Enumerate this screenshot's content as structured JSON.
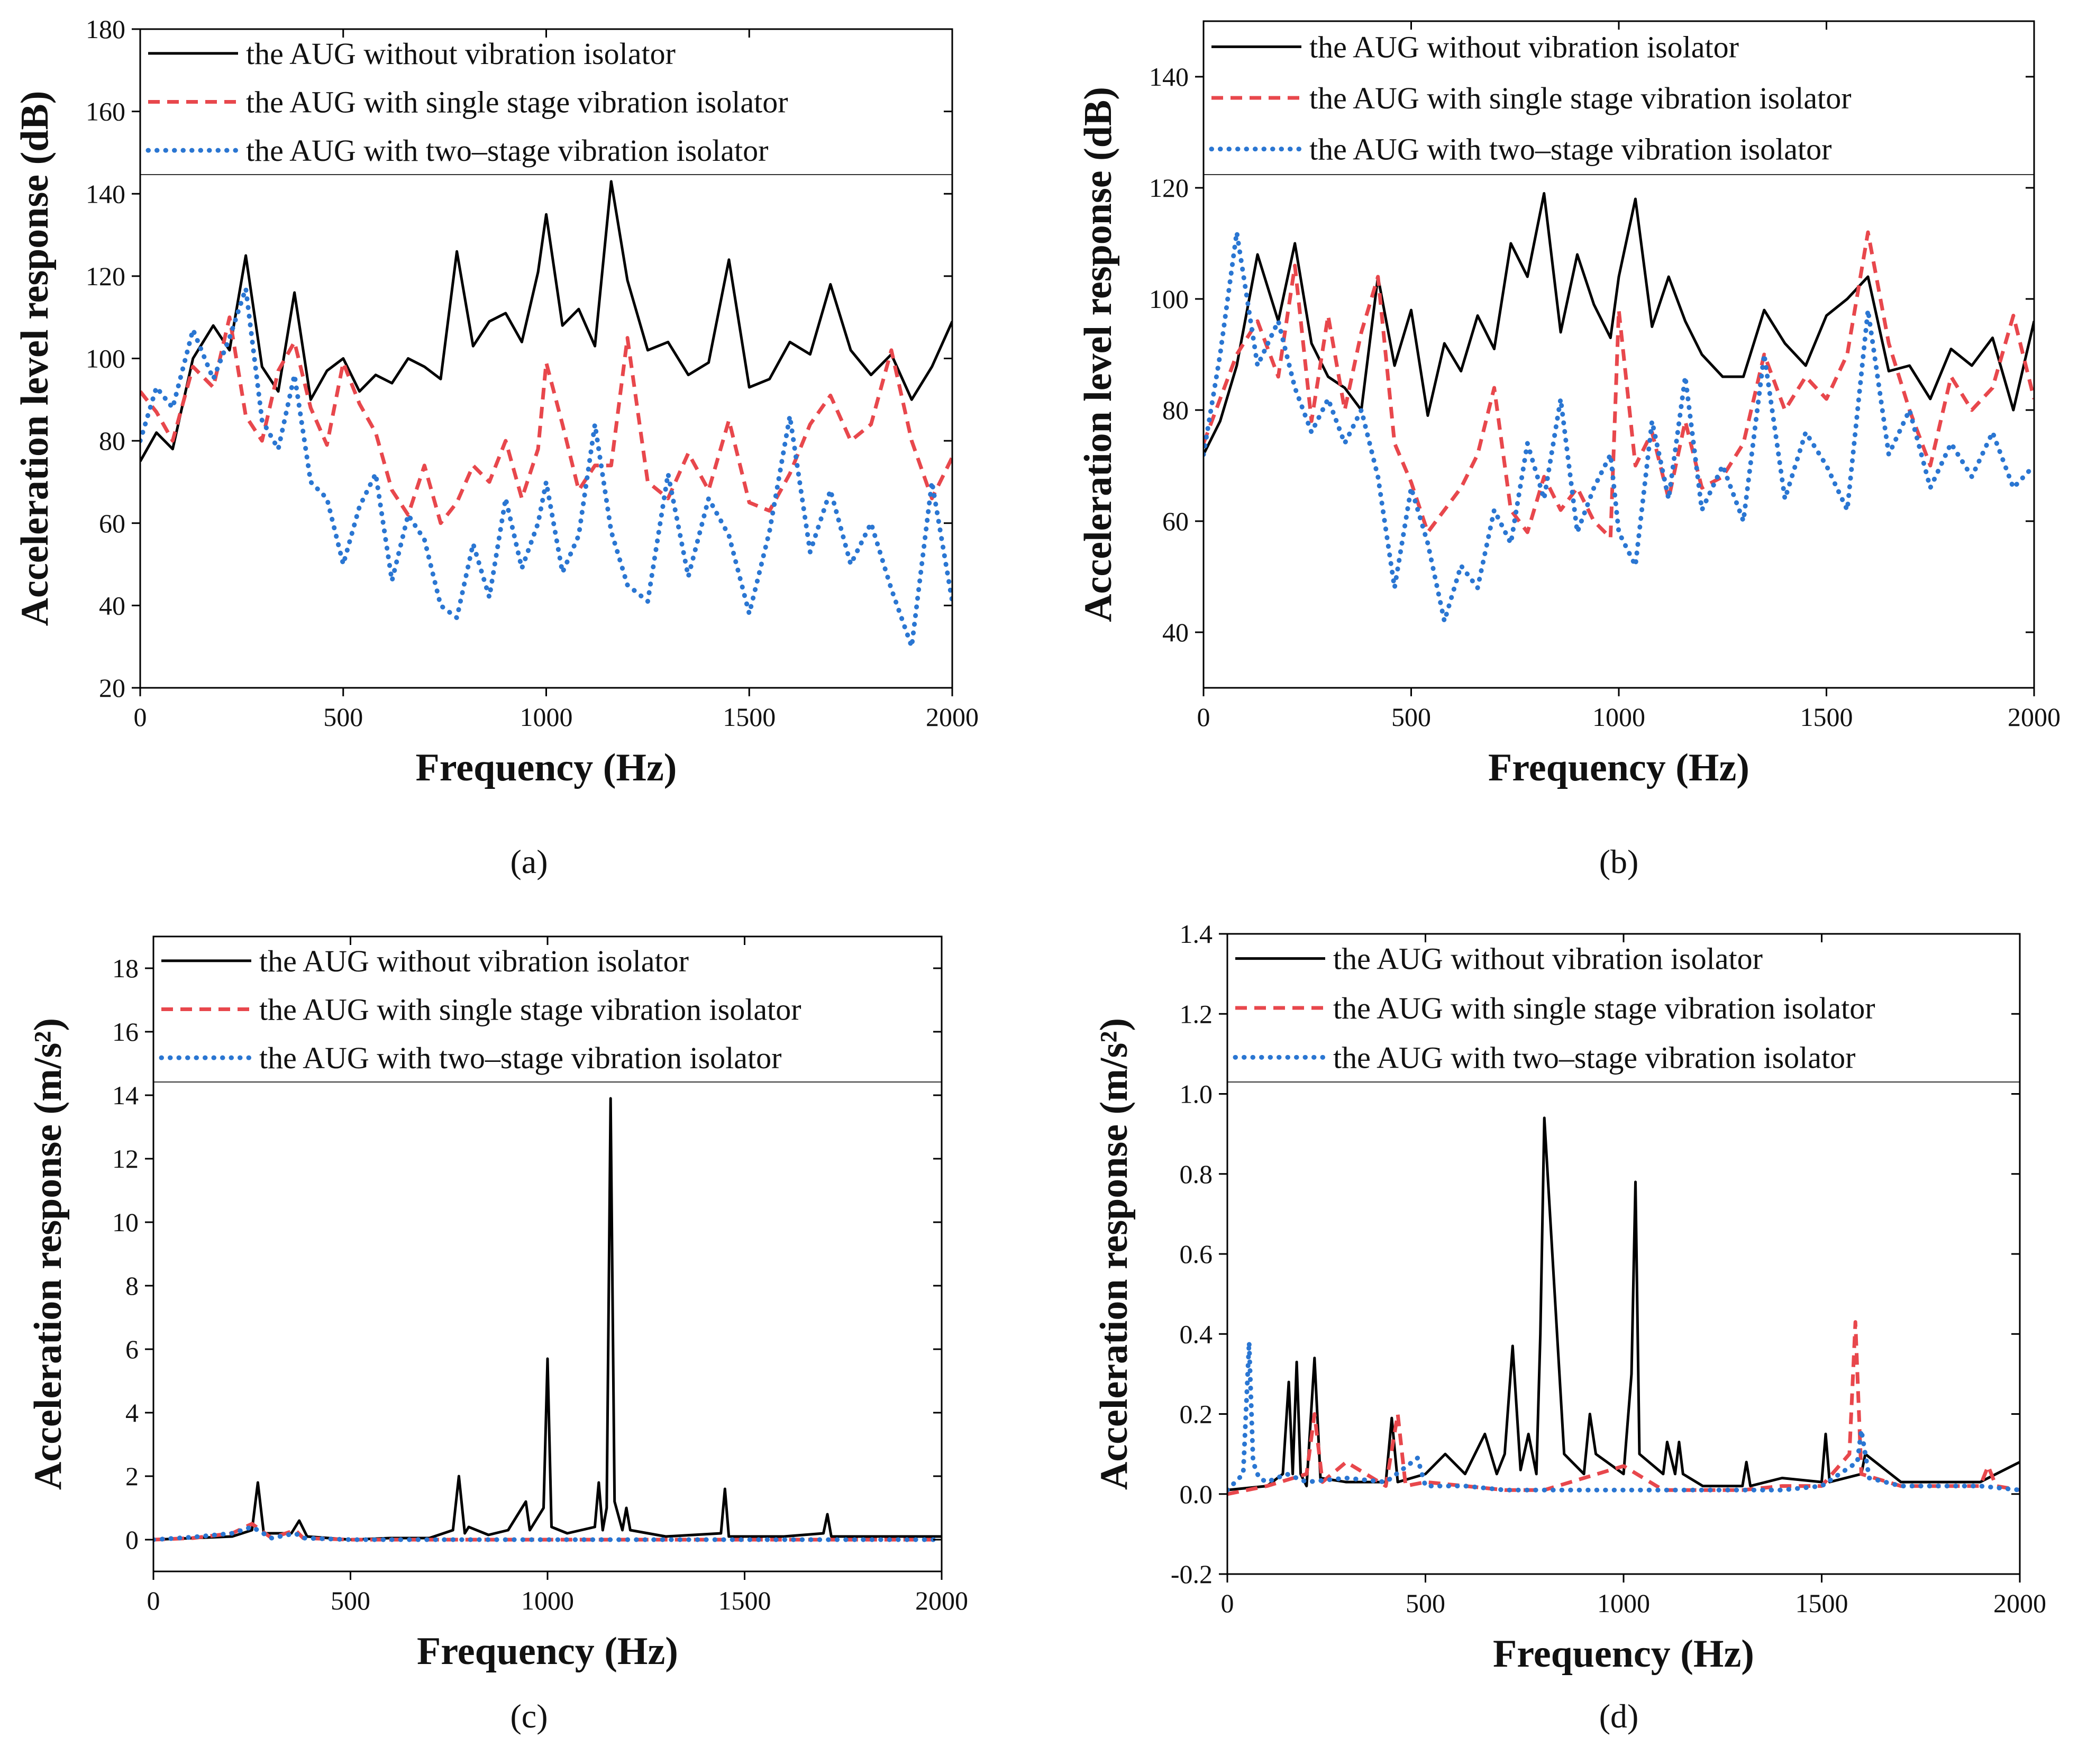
{
  "figure_type": "four-panel frequency response comparison",
  "legend_entries": [
    {
      "label": "the AUG without vibration isolator",
      "color": "#000000",
      "style": "solid"
    },
    {
      "label": "the AUG with single stage vibration isolator",
      "color": "#e8474c",
      "style": "dashed"
    },
    {
      "label": "the AUG with two–stage vibration isolator",
      "color": "#2a76d2",
      "style": "dotted"
    }
  ],
  "panel_labels": [
    "(a)",
    "(b)",
    "(c)",
    "(d)"
  ],
  "chart_data": [
    {
      "type": "line",
      "panel": "(a)",
      "xlabel": "Frequency (Hz)",
      "ylabel": "Acceleration level response (dB)",
      "xlim": [
        0,
        2000
      ],
      "ylim": [
        20,
        180
      ],
      "xticks": [
        0,
        500,
        1000,
        1500,
        2000
      ],
      "yticks": [
        20,
        40,
        60,
        80,
        100,
        120,
        140,
        160,
        180
      ],
      "tick_decimals": 0,
      "legend_position": "top",
      "series": [
        {
          "name": "the AUG without vibration isolator",
          "x": [
            0,
            40,
            80,
            130,
            180,
            220,
            260,
            300,
            340,
            380,
            420,
            460,
            500,
            540,
            580,
            620,
            660,
            700,
            740,
            780,
            820,
            860,
            900,
            940,
            980,
            1000,
            1040,
            1080,
            1120,
            1160,
            1200,
            1250,
            1300,
            1350,
            1400,
            1450,
            1500,
            1550,
            1600,
            1650,
            1700,
            1750,
            1800,
            1850,
            1900,
            1950,
            2000
          ],
          "y": [
            75,
            82,
            78,
            100,
            108,
            102,
            125,
            98,
            92,
            116,
            90,
            97,
            100,
            92,
            96,
            94,
            100,
            98,
            95,
            126,
            103,
            109,
            111,
            104,
            121,
            135,
            108,
            112,
            103,
            143,
            119,
            102,
            104,
            96,
            99,
            124,
            93,
            95,
            104,
            101,
            118,
            102,
            96,
            101,
            90,
            98,
            109
          ]
        },
        {
          "name": "the AUG with single stage vibration isolator",
          "x": [
            0,
            40,
            80,
            130,
            180,
            220,
            260,
            300,
            340,
            380,
            420,
            460,
            500,
            540,
            580,
            620,
            660,
            700,
            740,
            780,
            820,
            860,
            900,
            940,
            980,
            1000,
            1040,
            1080,
            1120,
            1160,
            1200,
            1250,
            1300,
            1350,
            1400,
            1450,
            1500,
            1550,
            1600,
            1650,
            1700,
            1750,
            1800,
            1850,
            1900,
            1950,
            2000
          ],
          "y": [
            92,
            87,
            80,
            98,
            93,
            110,
            86,
            80,
            97,
            104,
            88,
            79,
            99,
            89,
            82,
            68,
            62,
            74,
            60,
            65,
            74,
            70,
            80,
            66,
            78,
            99,
            84,
            68,
            74,
            74,
            105,
            70,
            66,
            77,
            68,
            85,
            65,
            63,
            72,
            84,
            91,
            80,
            84,
            102,
            80,
            66,
            76
          ]
        },
        {
          "name": "the AUG with two–stage vibration isolator",
          "x": [
            0,
            40,
            80,
            130,
            180,
            220,
            260,
            300,
            340,
            380,
            420,
            460,
            500,
            540,
            580,
            620,
            660,
            700,
            740,
            780,
            820,
            860,
            900,
            940,
            980,
            1000,
            1040,
            1080,
            1120,
            1160,
            1200,
            1250,
            1300,
            1350,
            1400,
            1450,
            1500,
            1550,
            1600,
            1650,
            1700,
            1750,
            1800,
            1850,
            1900,
            1950,
            2000
          ],
          "y": [
            80,
            93,
            88,
            107,
            95,
            105,
            117,
            85,
            78,
            96,
            70,
            66,
            50,
            64,
            72,
            46,
            62,
            56,
            40,
            37,
            55,
            42,
            66,
            49,
            60,
            70,
            48,
            57,
            84,
            58,
            45,
            41,
            72,
            47,
            66,
            57,
            38,
            58,
            86,
            53,
            68,
            50,
            60,
            44,
            30,
            70,
            41
          ]
        }
      ]
    },
    {
      "type": "line",
      "panel": "(b)",
      "xlabel": "Frequency (Hz)",
      "ylabel": "Acceleration level response (dB)",
      "xlim": [
        0,
        2000
      ],
      "ylim": [
        30,
        150
      ],
      "xticks": [
        0,
        500,
        1000,
        1500,
        2000
      ],
      "yticks": [
        40,
        60,
        80,
        100,
        120,
        140
      ],
      "tick_decimals": 0,
      "legend_position": "top",
      "series": [
        {
          "name": "the AUG without vibration isolator",
          "x": [
            0,
            40,
            80,
            130,
            180,
            220,
            260,
            300,
            340,
            380,
            420,
            460,
            500,
            540,
            580,
            620,
            660,
            700,
            740,
            780,
            820,
            860,
            900,
            940,
            980,
            1000,
            1040,
            1080,
            1120,
            1160,
            1200,
            1250,
            1300,
            1350,
            1400,
            1450,
            1500,
            1550,
            1600,
            1650,
            1700,
            1750,
            1800,
            1850,
            1900,
            1950,
            2000
          ],
          "y": [
            72,
            78,
            88,
            108,
            96,
            110,
            92,
            86,
            84,
            80,
            104,
            88,
            98,
            79,
            92,
            87,
            97,
            91,
            110,
            104,
            119,
            94,
            108,
            99,
            93,
            104,
            118,
            95,
            104,
            96,
            90,
            86,
            86,
            98,
            92,
            88,
            97,
            100,
            104,
            87,
            88,
            82,
            91,
            88,
            93,
            80,
            96
          ]
        },
        {
          "name": "the AUG with single stage vibration isolator",
          "x": [
            0,
            40,
            80,
            130,
            180,
            220,
            260,
            300,
            340,
            380,
            420,
            460,
            500,
            540,
            580,
            620,
            660,
            700,
            740,
            780,
            820,
            860,
            900,
            940,
            980,
            1000,
            1040,
            1080,
            1120,
            1160,
            1200,
            1250,
            1300,
            1350,
            1400,
            1450,
            1500,
            1550,
            1600,
            1650,
            1700,
            1750,
            1800,
            1850,
            1900,
            1950,
            2000
          ],
          "y": [
            74,
            82,
            90,
            96,
            86,
            106,
            78,
            97,
            80,
            94,
            104,
            74,
            67,
            58,
            62,
            66,
            72,
            84,
            62,
            58,
            68,
            62,
            66,
            60,
            57,
            98,
            70,
            76,
            64,
            78,
            66,
            68,
            74,
            90,
            80,
            86,
            82,
            90,
            112,
            92,
            80,
            70,
            86,
            80,
            84,
            97,
            82
          ]
        },
        {
          "name": "the AUG with two–stage vibration isolator",
          "x": [
            0,
            40,
            80,
            130,
            180,
            220,
            260,
            300,
            340,
            380,
            420,
            460,
            500,
            540,
            580,
            620,
            660,
            700,
            740,
            780,
            820,
            860,
            900,
            940,
            980,
            1000,
            1040,
            1080,
            1120,
            1160,
            1200,
            1250,
            1300,
            1350,
            1400,
            1450,
            1500,
            1550,
            1600,
            1650,
            1700,
            1750,
            1800,
            1850,
            1900,
            1950,
            2000
          ],
          "y": [
            72,
            90,
            112,
            88,
            96,
            84,
            76,
            82,
            74,
            80,
            68,
            48,
            66,
            56,
            42,
            52,
            48,
            62,
            56,
            74,
            64,
            82,
            58,
            66,
            72,
            58,
            52,
            78,
            64,
            86,
            62,
            70,
            60,
            90,
            64,
            76,
            70,
            62,
            98,
            72,
            80,
            66,
            74,
            68,
            76,
            66,
            70
          ]
        }
      ]
    },
    {
      "type": "line",
      "panel": "(c)",
      "xlabel": "Frequency (Hz)",
      "ylabel": "Acceleration response (m/s²)",
      "xlim": [
        0,
        2000
      ],
      "ylim": [
        -1,
        19
      ],
      "xticks": [
        0,
        500,
        1000,
        1500,
        2000
      ],
      "yticks": [
        0,
        2,
        4,
        6,
        8,
        10,
        12,
        14,
        16,
        18
      ],
      "tick_decimals": 0,
      "legend_position": "top",
      "series": [
        {
          "name": "the AUG without vibration isolator",
          "x": [
            0,
            100,
            200,
            250,
            265,
            280,
            350,
            370,
            390,
            500,
            600,
            700,
            760,
            775,
            790,
            800,
            850,
            900,
            945,
            955,
            990,
            1000,
            1010,
            1050,
            1120,
            1130,
            1140,
            1150,
            1160,
            1170,
            1190,
            1200,
            1210,
            1300,
            1440,
            1450,
            1460,
            1600,
            1700,
            1710,
            1720,
            2000
          ],
          "y": [
            0,
            0.05,
            0.1,
            0.3,
            1.8,
            0.2,
            0.2,
            0.6,
            0.1,
            0,
            0.05,
            0.05,
            0.3,
            2.0,
            0.2,
            0.4,
            0.15,
            0.3,
            1.2,
            0.3,
            1.0,
            5.7,
            0.4,
            0.2,
            0.4,
            1.8,
            0.3,
            1.0,
            13.9,
            1.2,
            0.3,
            1.0,
            0.3,
            0.1,
            0.2,
            1.6,
            0.1,
            0.1,
            0.2,
            0.8,
            0.1,
            0.1
          ]
        },
        {
          "name": "the AUG with single stage vibration isolator",
          "x": [
            0,
            100,
            200,
            250,
            300,
            360,
            380,
            500,
            1000,
            1500,
            2000
          ],
          "y": [
            0,
            0.05,
            0.2,
            0.5,
            0.05,
            0.3,
            0.05,
            0,
            0,
            0,
            0
          ]
        },
        {
          "name": "the AUG with two–stage vibration isolator",
          "x": [
            0,
            100,
            200,
            250,
            300,
            360,
            380,
            500,
            1000,
            1500,
            2000
          ],
          "y": [
            0,
            0.08,
            0.2,
            0.4,
            0.05,
            0.2,
            0.05,
            0,
            0,
            0,
            0
          ]
        }
      ]
    },
    {
      "type": "line",
      "panel": "(d)",
      "xlabel": "Frequency (Hz)",
      "ylabel": "Acceleration response (m/s²)",
      "xlim": [
        0,
        2000
      ],
      "ylim": [
        -0.2,
        1.4
      ],
      "xticks": [
        0,
        500,
        1000,
        1500,
        2000
      ],
      "yticks": [
        -0.2,
        0.0,
        0.2,
        0.4,
        0.6,
        0.8,
        1.0,
        1.2,
        1.4
      ],
      "tick_decimals": 1,
      "legend_position": "top",
      "series": [
        {
          "name": "the AUG without vibration isolator",
          "x": [
            0,
            100,
            140,
            155,
            165,
            175,
            185,
            200,
            220,
            235,
            300,
            400,
            415,
            430,
            500,
            550,
            600,
            650,
            680,
            700,
            720,
            740,
            760,
            780,
            790,
            800,
            850,
            900,
            915,
            930,
            1000,
            1020,
            1030,
            1040,
            1100,
            1110,
            1130,
            1140,
            1150,
            1200,
            1300,
            1310,
            1320,
            1400,
            1500,
            1510,
            1520,
            1600,
            1610,
            1700,
            1800,
            1900,
            2000
          ],
          "y": [
            0.01,
            0.02,
            0.05,
            0.28,
            0.05,
            0.33,
            0.05,
            0.02,
            0.34,
            0.04,
            0.03,
            0.03,
            0.19,
            0.03,
            0.05,
            0.1,
            0.05,
            0.15,
            0.05,
            0.1,
            0.37,
            0.06,
            0.15,
            0.05,
            0.4,
            0.94,
            0.1,
            0.05,
            0.2,
            0.1,
            0.05,
            0.3,
            0.78,
            0.1,
            0.05,
            0.13,
            0.05,
            0.13,
            0.05,
            0.02,
            0.02,
            0.08,
            0.02,
            0.04,
            0.03,
            0.15,
            0.03,
            0.05,
            0.1,
            0.03,
            0.03,
            0.03,
            0.08
          ]
        },
        {
          "name": "the AUG with single stage vibration isolator",
          "x": [
            0,
            100,
            200,
            220,
            240,
            300,
            400,
            430,
            450,
            500,
            600,
            700,
            800,
            1000,
            1100,
            1200,
            1300,
            1400,
            1500,
            1570,
            1585,
            1600,
            1700,
            1800,
            1900,
            1920,
            1940,
            2000
          ],
          "y": [
            0,
            0.02,
            0.05,
            0.2,
            0.03,
            0.08,
            0.02,
            0.2,
            0.02,
            0.03,
            0.02,
            0.01,
            0.01,
            0.07,
            0.01,
            0.01,
            0.01,
            0.02,
            0.02,
            0.1,
            0.43,
            0.05,
            0.02,
            0.02,
            0.02,
            0.07,
            0.02,
            0.01
          ]
        },
        {
          "name": "the AUG with two–stage vibration isolator",
          "x": [
            0,
            40,
            55,
            65,
            80,
            100,
            150,
            200,
            300,
            400,
            480,
            500,
            600,
            700,
            800,
            1000,
            1200,
            1400,
            1500,
            1590,
            1600,
            1620,
            1700,
            1800,
            1900,
            2000
          ],
          "y": [
            0.01,
            0.05,
            0.38,
            0.08,
            0.04,
            0.03,
            0.05,
            0.03,
            0.04,
            0.03,
            0.09,
            0.02,
            0.02,
            0.01,
            0.01,
            0.01,
            0.01,
            0.01,
            0.02,
            0.08,
            0.16,
            0.04,
            0.02,
            0.02,
            0.02,
            0.01
          ]
        }
      ]
    }
  ]
}
